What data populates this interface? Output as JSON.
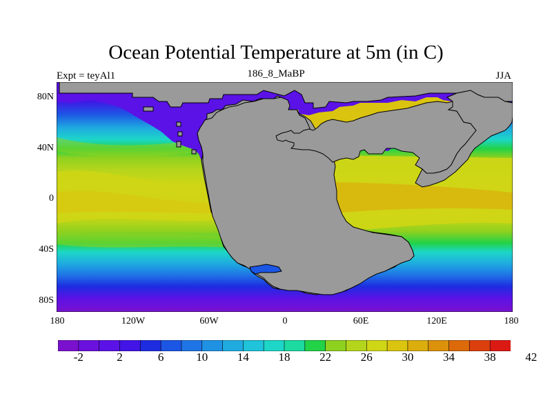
{
  "title": "Ocean Potential Temperature at 5m (in C)",
  "left_label": "Expt = teyAl1",
  "center_label": "186_8_MaBP",
  "right_label": "JJA",
  "lat_ticks": [
    "80N",
    "40N",
    "0",
    "40S",
    "80S"
  ],
  "lon_ticks": [
    "180",
    "120W",
    "60W",
    "0",
    "60E",
    "120E",
    "180"
  ],
  "colorbar": {
    "colors": [
      "#7a11cf",
      "#6a11dd",
      "#5a12e6",
      "#4214e6",
      "#1e2ce0",
      "#1c56e4",
      "#1f74e6",
      "#1f92e4",
      "#1fabe0",
      "#1fc3da",
      "#1dd6c8",
      "#1cdaa0",
      "#22d247",
      "#8fd11f",
      "#b4d51c",
      "#cfd615",
      "#dac40f",
      "#dbad0d",
      "#dc910b",
      "#dc6a0b",
      "#dc400e",
      "#dc1a14"
    ],
    "labels": [
      "-2",
      "2",
      "6",
      "10",
      "14",
      "18",
      "22",
      "26",
      "30",
      "34",
      "38",
      "42"
    ]
  },
  "colors": {
    "land": "#9a9a9a"
  }
}
